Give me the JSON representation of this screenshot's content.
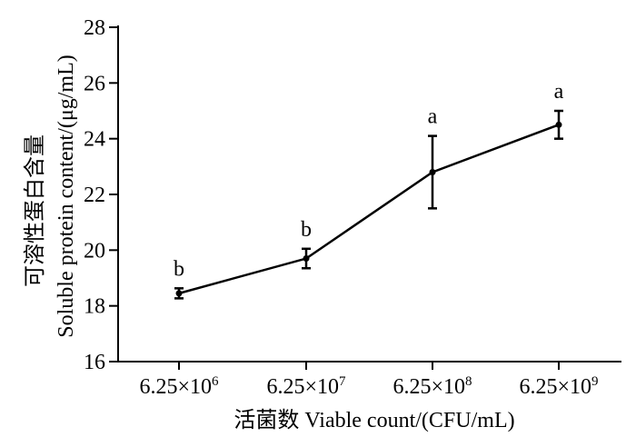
{
  "chart_data": {
    "type": "line",
    "categories": [
      "6.25×10^6",
      "6.25×10^7",
      "6.25×10^8",
      "6.25×10^9"
    ],
    "x_tick_labels": [
      {
        "base": "6.25×10",
        "exp": "6"
      },
      {
        "base": "6.25×10",
        "exp": "7"
      },
      {
        "base": "6.25×10",
        "exp": "8"
      },
      {
        "base": "6.25×10",
        "exp": "9"
      }
    ],
    "series": [
      {
        "values": [
          18.45,
          19.7,
          22.8,
          24.5
        ],
        "errors": [
          0.18,
          0.35,
          1.3,
          0.5
        ],
        "significance": [
          "b",
          "b",
          "a",
          "a"
        ]
      }
    ],
    "xlabel": "活菌数 Viable count/(CFU/mL)",
    "ylabel_cn": "可溶性蛋白含量",
    "ylabel_en": "Soluble protein content/(μg/mL)",
    "ylim": [
      16,
      28
    ],
    "yticks": [
      16,
      18,
      20,
      22,
      24,
      26,
      28
    ],
    "grid": false,
    "colors": {
      "line": "#000000",
      "axis": "#000000"
    }
  }
}
